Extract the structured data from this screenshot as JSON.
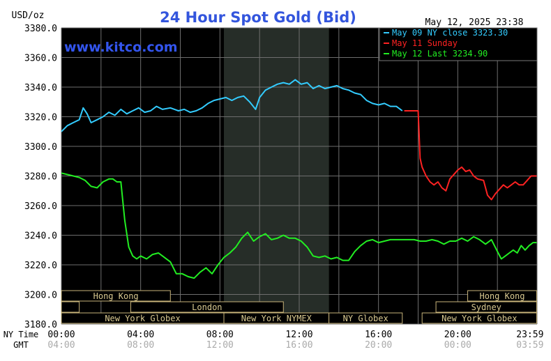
{
  "chart_data": {
    "type": "line",
    "title": "24 Hour Spot Gold (Bid)",
    "unit_label": "USD/oz",
    "watermark": "www.kitco.com",
    "timestamp": "May 12, 2025 23:38",
    "ylim": [
      3180,
      3380
    ],
    "y_ticks": [
      "3380.0",
      "3360.0",
      "3340.0",
      "3320.0",
      "3300.0",
      "3280.0",
      "3260.0",
      "3240.0",
      "3220.0",
      "3200.0",
      "3180.0"
    ],
    "y_tick_values": [
      3380,
      3360,
      3340,
      3320,
      3300,
      3280,
      3260,
      3240,
      3220,
      3200,
      3180
    ],
    "xlim": [
      0,
      24
    ],
    "x_axis_label_ny": "NY Time",
    "x_axis_label_gmt": "GMT",
    "x_ticks_ny": [
      "00:00",
      "04:00",
      "08:00",
      "12:00",
      "16:00",
      "20:00",
      "23:59"
    ],
    "x_ticks_gmt": [
      "04:00",
      "08:00",
      "12:00",
      "16:00",
      "20:00",
      "00:00",
      "03:59"
    ],
    "x_tick_hours": [
      0,
      4,
      8,
      12,
      16,
      20,
      23.98
    ],
    "shaded_session": [
      8.2,
      13.5
    ],
    "legend": [
      {
        "label": "May 09 NY close 3323.30",
        "color": "#33ccff"
      },
      {
        "label": "May 11 Sunday",
        "color": "#ff2222"
      },
      {
        "label": "May 12 Last 3234.90",
        "color": "#22ee22"
      }
    ],
    "series": [
      {
        "color": "#33ccff",
        "points": [
          [
            0,
            3310
          ],
          [
            0.3,
            3314
          ],
          [
            0.6,
            3316
          ],
          [
            0.9,
            3318
          ],
          [
            1.1,
            3326
          ],
          [
            1.3,
            3322
          ],
          [
            1.5,
            3316
          ],
          [
            1.8,
            3318
          ],
          [
            2.1,
            3320
          ],
          [
            2.4,
            3323
          ],
          [
            2.7,
            3321
          ],
          [
            3.0,
            3325
          ],
          [
            3.3,
            3322
          ],
          [
            3.6,
            3324
          ],
          [
            3.9,
            3326
          ],
          [
            4.2,
            3323
          ],
          [
            4.5,
            3324
          ],
          [
            4.8,
            3327
          ],
          [
            5.1,
            3325
          ],
          [
            5.5,
            3326
          ],
          [
            5.9,
            3324
          ],
          [
            6.2,
            3325
          ],
          [
            6.5,
            3323
          ],
          [
            6.8,
            3324
          ],
          [
            7.1,
            3326
          ],
          [
            7.4,
            3329
          ],
          [
            7.7,
            3331
          ],
          [
            8.0,
            3332
          ],
          [
            8.3,
            3333
          ],
          [
            8.6,
            3331
          ],
          [
            8.9,
            3333
          ],
          [
            9.2,
            3334
          ],
          [
            9.5,
            3330
          ],
          [
            9.8,
            3325
          ],
          [
            10.0,
            3333
          ],
          [
            10.3,
            3338
          ],
          [
            10.6,
            3340
          ],
          [
            10.9,
            3342
          ],
          [
            11.2,
            3343
          ],
          [
            11.5,
            3342
          ],
          [
            11.8,
            3345
          ],
          [
            12.1,
            3342
          ],
          [
            12.4,
            3343
          ],
          [
            12.7,
            3339
          ],
          [
            13.0,
            3341
          ],
          [
            13.3,
            3339
          ],
          [
            13.6,
            3340
          ],
          [
            13.9,
            3341
          ],
          [
            14.2,
            3339
          ],
          [
            14.5,
            3338
          ],
          [
            14.8,
            3336
          ],
          [
            15.1,
            3335
          ],
          [
            15.4,
            3331
          ],
          [
            15.7,
            3329
          ],
          [
            16.0,
            3328
          ],
          [
            16.3,
            3329
          ],
          [
            16.6,
            3327
          ],
          [
            16.9,
            3327
          ],
          [
            17.2,
            3324
          ]
        ]
      },
      {
        "color": "#ff2222",
        "points": [
          [
            17.3,
            3324
          ],
          [
            18.0,
            3324
          ],
          [
            18.1,
            3292
          ],
          [
            18.2,
            3286
          ],
          [
            18.4,
            3280
          ],
          [
            18.6,
            3276
          ],
          [
            18.8,
            3274
          ],
          [
            19.0,
            3276
          ],
          [
            19.2,
            3272
          ],
          [
            19.4,
            3270
          ],
          [
            19.6,
            3278
          ],
          [
            19.8,
            3281
          ],
          [
            20.0,
            3284
          ],
          [
            20.2,
            3286
          ],
          [
            20.4,
            3283
          ],
          [
            20.6,
            3284
          ],
          [
            20.8,
            3280
          ],
          [
            21.0,
            3278
          ],
          [
            21.3,
            3277
          ],
          [
            21.5,
            3267
          ],
          [
            21.7,
            3264
          ],
          [
            21.9,
            3268
          ],
          [
            22.1,
            3271
          ],
          [
            22.3,
            3274
          ],
          [
            22.5,
            3272
          ],
          [
            22.7,
            3274
          ],
          [
            22.9,
            3276
          ],
          [
            23.1,
            3274
          ],
          [
            23.3,
            3274
          ],
          [
            23.5,
            3277
          ],
          [
            23.7,
            3280
          ],
          [
            23.98,
            3280
          ]
        ]
      },
      {
        "color": "#22ee22",
        "points": [
          [
            0,
            3282
          ],
          [
            0.3,
            3281
          ],
          [
            0.6,
            3280
          ],
          [
            0.9,
            3279
          ],
          [
            1.2,
            3277
          ],
          [
            1.5,
            3273
          ],
          [
            1.8,
            3272
          ],
          [
            2.1,
            3276
          ],
          [
            2.4,
            3278
          ],
          [
            2.6,
            3278
          ],
          [
            2.8,
            3276
          ],
          [
            3.0,
            3276
          ],
          [
            3.2,
            3250
          ],
          [
            3.4,
            3232
          ],
          [
            3.6,
            3226
          ],
          [
            3.8,
            3224
          ],
          [
            4.0,
            3226
          ],
          [
            4.3,
            3224
          ],
          [
            4.6,
            3227
          ],
          [
            4.9,
            3228
          ],
          [
            5.2,
            3225
          ],
          [
            5.5,
            3222
          ],
          [
            5.8,
            3214
          ],
          [
            6.1,
            3214
          ],
          [
            6.4,
            3212
          ],
          [
            6.7,
            3211
          ],
          [
            7.0,
            3215
          ],
          [
            7.3,
            3218
          ],
          [
            7.6,
            3214
          ],
          [
            7.9,
            3220
          ],
          [
            8.2,
            3225
          ],
          [
            8.5,
            3228
          ],
          [
            8.8,
            3232
          ],
          [
            9.1,
            3238
          ],
          [
            9.4,
            3242
          ],
          [
            9.7,
            3236
          ],
          [
            10.0,
            3239
          ],
          [
            10.3,
            3241
          ],
          [
            10.6,
            3237
          ],
          [
            10.9,
            3238
          ],
          [
            11.2,
            3240
          ],
          [
            11.5,
            3238
          ],
          [
            11.8,
            3238
          ],
          [
            12.1,
            3236
          ],
          [
            12.4,
            3232
          ],
          [
            12.7,
            3226
          ],
          [
            13.0,
            3225
          ],
          [
            13.3,
            3226
          ],
          [
            13.6,
            3224
          ],
          [
            13.9,
            3225
          ],
          [
            14.2,
            3223
          ],
          [
            14.5,
            3223
          ],
          [
            14.8,
            3229
          ],
          [
            15.1,
            3233
          ],
          [
            15.4,
            3236
          ],
          [
            15.7,
            3237
          ],
          [
            16.0,
            3235
          ],
          [
            16.3,
            3236
          ],
          [
            16.6,
            3237
          ],
          [
            16.9,
            3237
          ],
          [
            17.2,
            3237
          ],
          [
            17.5,
            3237
          ],
          [
            17.8,
            3237
          ],
          [
            18.1,
            3236
          ],
          [
            18.4,
            3236
          ],
          [
            18.7,
            3237
          ],
          [
            19.0,
            3236
          ],
          [
            19.3,
            3234
          ],
          [
            19.6,
            3236
          ],
          [
            19.9,
            3236
          ],
          [
            20.2,
            3238
          ],
          [
            20.5,
            3236
          ],
          [
            20.8,
            3239
          ],
          [
            21.1,
            3237
          ],
          [
            21.4,
            3234
          ],
          [
            21.7,
            3237
          ],
          [
            22.0,
            3229
          ],
          [
            22.2,
            3224
          ],
          [
            22.4,
            3226
          ],
          [
            22.6,
            3228
          ],
          [
            22.8,
            3230
          ],
          [
            23.0,
            3228
          ],
          [
            23.2,
            3233
          ],
          [
            23.4,
            3230
          ],
          [
            23.6,
            3233
          ],
          [
            23.8,
            3235
          ],
          [
            23.98,
            3235
          ]
        ]
      }
    ],
    "sessions": [
      [
        {
          "label": "Hong Kong",
          "start": 0,
          "end": 5.5
        },
        {
          "label": "Hong Kong",
          "start": 20.5,
          "end": 23.98
        }
      ],
      [
        {
          "label": "",
          "start": 0,
          "end": 0.9
        },
        {
          "label": "London",
          "start": 3.5,
          "end": 11.2
        },
        {
          "label": "Sydney",
          "start": 18.9,
          "end": 23.98
        }
      ],
      [
        {
          "label": "New York Globex",
          "start": 0,
          "end": 8.2
        },
        {
          "label": "New York NYMEX",
          "start": 8.2,
          "end": 13.5
        },
        {
          "label": "NY Globex",
          "start": 13.5,
          "end": 17.2
        },
        {
          "label": "New York Globex",
          "start": 18.2,
          "end": 23.98
        }
      ]
    ]
  }
}
